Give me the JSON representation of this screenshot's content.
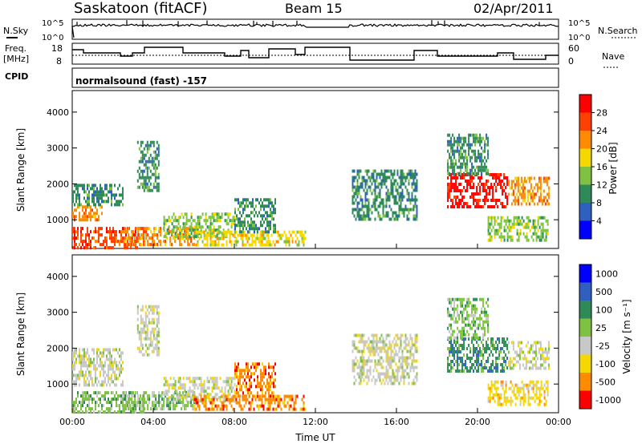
{
  "header": {
    "station": "Saskatoon (fitACF)",
    "beam": "Beam 15",
    "date": "02/Apr/2011"
  },
  "nsky_panel": {
    "left_label": "N.Sky",
    "right_label": "N.Search",
    "yticks_left": [
      "10^5",
      "10^0"
    ],
    "yticks_right": [
      "10^5",
      "10^0"
    ]
  },
  "freq_panel": {
    "left_label_line1": "Freq.",
    "left_label_line2": "[MHz]",
    "right_label": "Nave",
    "yticks_left": [
      "18",
      "8"
    ],
    "yticks_right": [
      "60",
      "0"
    ]
  },
  "cpid": {
    "label": "CPID",
    "value": "normalsound (fast) -157"
  },
  "colors": {
    "power_scale": [
      "#0000ff",
      "#2f5fbf",
      "#2e8b57",
      "#7fc241",
      "#f5d800",
      "#ff8c00",
      "#ff4000",
      "#ff0000"
    ],
    "velocity_scale": [
      "#0000ff",
      "#2f5fbf",
      "#2e8b57",
      "#7fc241",
      "#c8c8c8",
      "#f5d800",
      "#ff8c00",
      "#ff0000"
    ]
  },
  "chart_data": [
    {
      "type": "heatmap",
      "name": "power",
      "ylabel": "Slant Range [km]",
      "yticks": [
        "1000",
        "2000",
        "3000",
        "4000"
      ],
      "ylim": [
        200,
        4600
      ],
      "xlim": [
        "00:00",
        "24:00"
      ],
      "colorbar": {
        "label": "Power [dB]",
        "ticks": [
          "4",
          "8",
          "12",
          "16",
          "20",
          "24",
          "28"
        ],
        "range": [
          0,
          32
        ]
      },
      "echo_regions": [
        {
          "t0": 0.0,
          "t1": 3.5,
          "r0": 250,
          "r1": 800,
          "level": 27
        },
        {
          "t0": 0.0,
          "t1": 1.5,
          "r0": 1000,
          "r1": 1400,
          "level": 22
        },
        {
          "t0": 0.0,
          "t1": 2.5,
          "r0": 1400,
          "r1": 2000,
          "level": 10
        },
        {
          "t0": 2.5,
          "t1": 6.0,
          "r0": 300,
          "r1": 800,
          "level": 20
        },
        {
          "t0": 3.2,
          "t1": 4.3,
          "r0": 1800,
          "r1": 3200,
          "level": 9
        },
        {
          "t0": 4.5,
          "t1": 8.0,
          "r0": 500,
          "r1": 1200,
          "level": 13
        },
        {
          "t0": 6.0,
          "t1": 11.5,
          "r0": 300,
          "r1": 700,
          "level": 18
        },
        {
          "t0": 8.0,
          "t1": 10.0,
          "r0": 700,
          "r1": 1600,
          "level": 9
        },
        {
          "t0": 13.8,
          "t1": 17.0,
          "r0": 1000,
          "r1": 2400,
          "level": 11
        },
        {
          "t0": 18.5,
          "t1": 21.5,
          "r0": 1400,
          "r1": 2300,
          "level": 29
        },
        {
          "t0": 18.5,
          "t1": 20.5,
          "r0": 2300,
          "r1": 3400,
          "level": 8
        },
        {
          "t0": 21.5,
          "t1": 23.5,
          "r0": 1400,
          "r1": 2200,
          "level": 21
        },
        {
          "t0": 20.5,
          "t1": 23.5,
          "r0": 400,
          "r1": 1100,
          "level": 15
        }
      ]
    },
    {
      "type": "heatmap",
      "name": "velocity",
      "ylabel": "Slant Range [km]",
      "yticks": [
        "1000",
        "2000",
        "3000",
        "4000"
      ],
      "ylim": [
        200,
        4600
      ],
      "xlim": [
        "00:00",
        "24:00"
      ],
      "xticks": [
        "00:00",
        "04:00",
        "08:00",
        "12:00",
        "16:00",
        "20:00",
        "00:00"
      ],
      "xlabel": "Time UT",
      "colorbar": {
        "label": "Velocity [m s⁻¹]",
        "ticks": [
          "1000",
          "500",
          "100",
          "25",
          "-25",
          "-100",
          "-500",
          "-1000"
        ]
      },
      "echo_regions": [
        {
          "t0": 0.0,
          "t1": 3.5,
          "r0": 250,
          "r1": 800,
          "level": 3
        },
        {
          "t0": 0.0,
          "t1": 2.5,
          "r0": 1000,
          "r1": 2000,
          "level": 4
        },
        {
          "t0": 2.5,
          "t1": 6.0,
          "r0": 300,
          "r1": 800,
          "level": 3
        },
        {
          "t0": 3.2,
          "t1": 4.3,
          "r0": 1800,
          "r1": 3200,
          "level": 4
        },
        {
          "t0": 4.5,
          "t1": 8.0,
          "r0": 500,
          "r1": 1200,
          "level": 4
        },
        {
          "t0": 6.0,
          "t1": 11.5,
          "r0": 300,
          "r1": 700,
          "level": 6
        },
        {
          "t0": 8.0,
          "t1": 10.0,
          "r0": 700,
          "r1": 1600,
          "level": 6
        },
        {
          "t0": 13.8,
          "t1": 17.0,
          "r0": 1000,
          "r1": 2400,
          "level": 4
        },
        {
          "t0": 18.5,
          "t1": 21.5,
          "r0": 1400,
          "r1": 2300,
          "level": 2
        },
        {
          "t0": 18.5,
          "t1": 20.5,
          "r0": 2300,
          "r1": 3400,
          "level": 3
        },
        {
          "t0": 21.5,
          "t1": 23.5,
          "r0": 1400,
          "r1": 2200,
          "level": 4
        },
        {
          "t0": 20.5,
          "t1": 23.5,
          "r0": 400,
          "r1": 1100,
          "level": 5
        }
      ]
    }
  ]
}
